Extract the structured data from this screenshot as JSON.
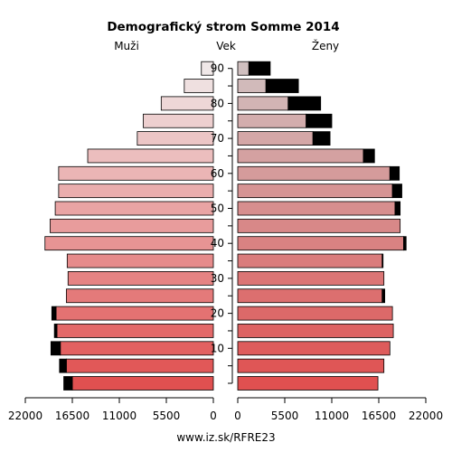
{
  "chart_data": {
    "type": "bar",
    "title": "Demografický strom Somme 2014",
    "left_label": "Muži",
    "center_label": "Vek",
    "right_label": "Ženy",
    "footer": "www.iz.sk/RFRE23",
    "xlim": [
      0,
      22000
    ],
    "x_ticks": [
      {
        "value": 22000,
        "label": "22000"
      },
      {
        "value": 16500,
        "label": "16500"
      },
      {
        "value": 11000,
        "label": "11000"
      },
      {
        "value": 5500,
        "label": "5500"
      },
      {
        "value": 0,
        "label": "0"
      }
    ],
    "age_ticks": [
      "10",
      "20",
      "30",
      "40",
      "50",
      "60",
      "70",
      "80",
      "90"
    ],
    "age_groups": [
      "0-4",
      "5-9",
      "10-14",
      "15-19",
      "20-24",
      "25-29",
      "30-34",
      "35-39",
      "40-44",
      "45-49",
      "50-54",
      "55-59",
      "60-64",
      "65-69",
      "70-74",
      "75-79",
      "80-84",
      "85-89",
      "90+"
    ],
    "men": {
      "base": [
        16500,
        17200,
        17900,
        18300,
        18400,
        17200,
        17000,
        17100,
        19700,
        19100,
        18500,
        18100,
        18100,
        14700,
        8900,
        8200,
        6100,
        3400,
        1400
      ],
      "extra": [
        1000,
        800,
        1100,
        300,
        500,
        0,
        0,
        0,
        0,
        0,
        0,
        0,
        0,
        0,
        0,
        0,
        0,
        0,
        0
      ]
    },
    "women": {
      "base": [
        16400,
        17100,
        17800,
        18200,
        18100,
        16900,
        17100,
        16900,
        19400,
        19000,
        18400,
        18100,
        17800,
        14700,
        8800,
        8000,
        5900,
        3300,
        1300
      ],
      "extra": [
        0,
        0,
        0,
        0,
        0,
        300,
        0,
        100,
        300,
        0,
        600,
        1100,
        1100,
        1300,
        2000,
        3000,
        3800,
        3800,
        2500
      ]
    },
    "colors": {
      "male_young": "#e05050",
      "male_old": "#f0e8e8",
      "female_young": "#e05050",
      "female_old": "#d0c0c0",
      "extra": "#000000"
    }
  }
}
